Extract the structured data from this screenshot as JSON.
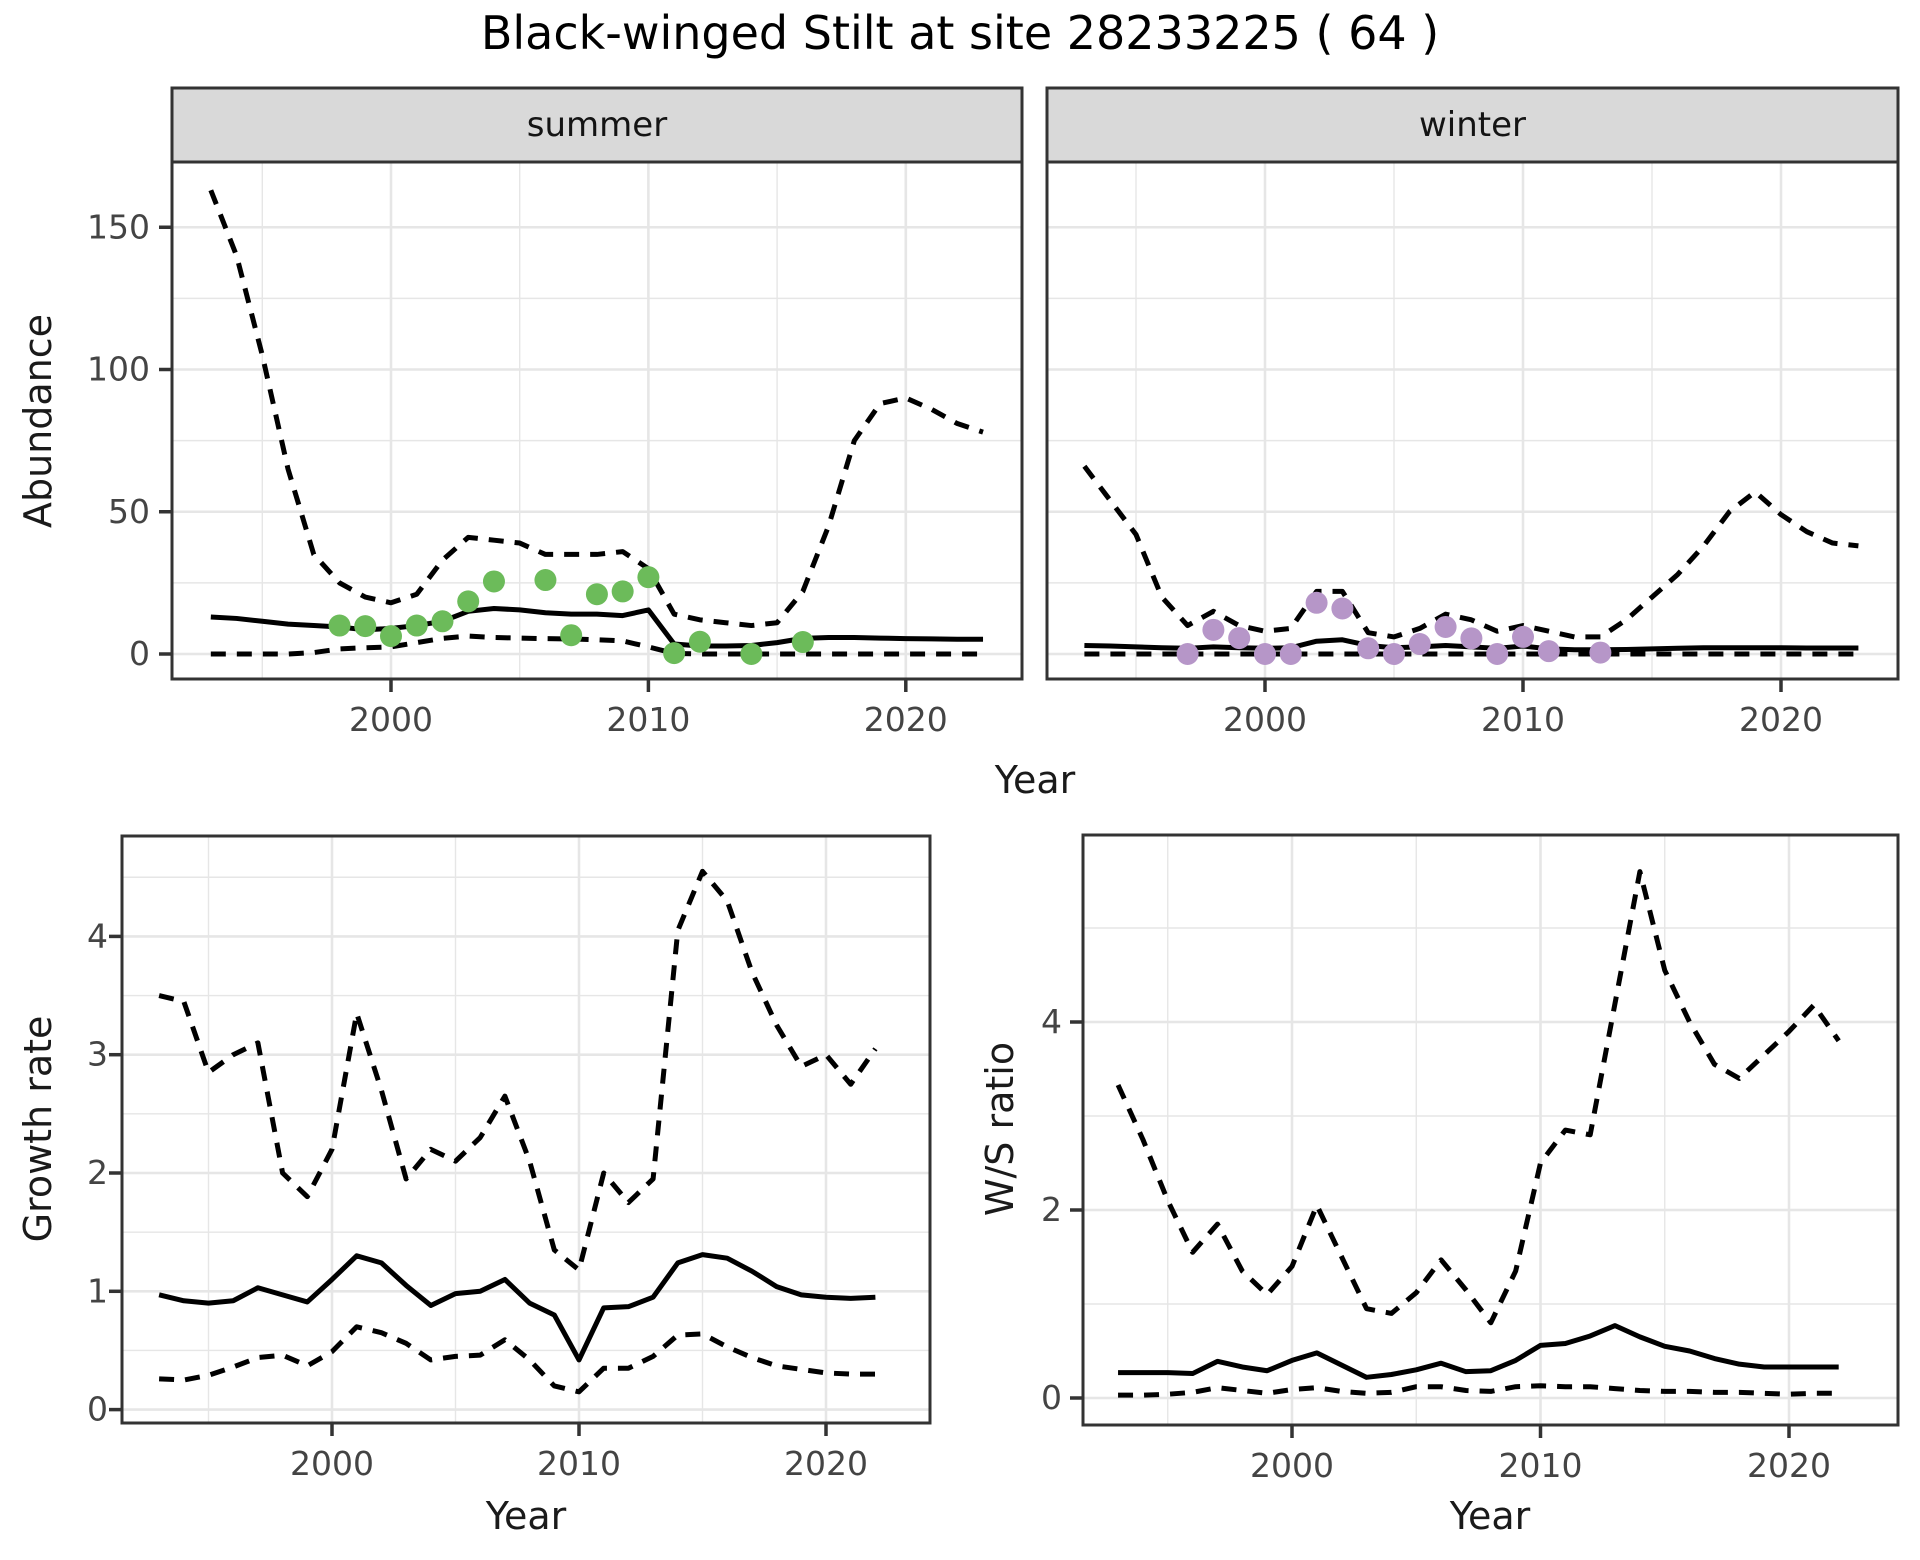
{
  "title": "Black-winged Stilt at site 28233225 ( 64 )",
  "colors": {
    "summer_points": "#6CBB5A",
    "winter_points": "#B696C8",
    "line": "#000000",
    "grid": "#E6E6E6",
    "strip_bg": "#D9D9D9",
    "panel_border": "#333333",
    "tick_text": "#444444",
    "axis_text": "#1A1A1A"
  },
  "chart_data": [
    {
      "type": "line",
      "facet": "summer",
      "xlabel": "Year",
      "ylabel": "Abundance",
      "x": [
        1993,
        1994,
        1995,
        1996,
        1997,
        1998,
        1999,
        2000,
        2001,
        2002,
        2003,
        2004,
        2005,
        2006,
        2007,
        2008,
        2009,
        2010,
        2011,
        2012,
        2013,
        2014,
        2015,
        2016,
        2017,
        2018,
        2019,
        2020,
        2021,
        2022,
        2023
      ],
      "series": [
        {
          "name": "upper_dashed",
          "style": "dashed",
          "values": [
            163,
            140,
            105,
            65,
            35,
            25,
            20,
            18,
            21,
            33,
            41,
            40,
            39,
            35,
            35,
            35,
            36,
            30,
            14,
            12,
            11,
            10,
            11,
            22,
            45,
            75,
            88,
            90,
            86,
            81,
            78
          ]
        },
        {
          "name": "median_solid",
          "style": "solid",
          "values": [
            13,
            12.5,
            11.5,
            10.5,
            10,
            9.5,
            8.5,
            9,
            10,
            11.5,
            15,
            16,
            15.5,
            14.5,
            14,
            14,
            13.5,
            15.5,
            3.5,
            2.8,
            2.8,
            3,
            4,
            5.5,
            5.8,
            5.8,
            5.6,
            5.4,
            5.3,
            5.2,
            5.2
          ]
        },
        {
          "name": "lower_dashed",
          "style": "dashed",
          "values": [
            0,
            0,
            0,
            0,
            0.5,
            1.8,
            2.2,
            2.5,
            4,
            5.5,
            6.3,
            5.8,
            5.6,
            5.4,
            5.3,
            5,
            4.6,
            2.5,
            0.2,
            0,
            0,
            0,
            0,
            0,
            0,
            0,
            0,
            0,
            0,
            0,
            0
          ]
        }
      ],
      "points": {
        "name": "observed-counts-summer",
        "color": "#6CBB5A",
        "xy": [
          [
            1998,
            10
          ],
          [
            1999,
            9.8
          ],
          [
            2000,
            6.3
          ],
          [
            2001,
            10
          ],
          [
            2002,
            11.5
          ],
          [
            2003,
            18.5
          ],
          [
            2004,
            25.5
          ],
          [
            2006,
            26
          ],
          [
            2007,
            6.6
          ],
          [
            2008,
            21
          ],
          [
            2009,
            22
          ],
          [
            2010,
            27
          ],
          [
            2011,
            0.3
          ],
          [
            2012,
            4.3
          ],
          [
            2014,
            0
          ],
          [
            2016,
            4.2
          ]
        ]
      },
      "xticks": [
        2000,
        2010,
        2020
      ],
      "yticks": [
        0,
        50,
        100,
        150
      ],
      "xlim": [
        1991.5,
        2024.5
      ],
      "ylim": [
        -8.8,
        171.6
      ],
      "grid": true,
      "legend": "none"
    },
    {
      "type": "line",
      "facet": "winter",
      "xlabel": "Year",
      "ylabel": "Abundance",
      "x": [
        1993,
        1994,
        1995,
        1996,
        1997,
        1998,
        1999,
        2000,
        2001,
        2002,
        2003,
        2004,
        2005,
        2006,
        2007,
        2008,
        2009,
        2010,
        2011,
        2012,
        2013,
        2014,
        2015,
        2016,
        2017,
        2018,
        2019,
        2020,
        2021,
        2022,
        2023
      ],
      "series": [
        {
          "name": "upper_dashed",
          "style": "dashed",
          "values": [
            66,
            54,
            42,
            20,
            10,
            15,
            10,
            8,
            9,
            22,
            22,
            7.5,
            6,
            9,
            14,
            12,
            8,
            10,
            8,
            6,
            6,
            12,
            20,
            28,
            38,
            50,
            57,
            49,
            43,
            39,
            38
          ]
        },
        {
          "name": "median_solid",
          "style": "solid",
          "values": [
            3,
            2.8,
            2.5,
            2.2,
            2,
            2.5,
            2.2,
            2,
            2.2,
            4.5,
            5,
            3,
            2.2,
            2.5,
            3,
            2.5,
            2,
            2.8,
            1.8,
            1.5,
            1.5,
            1.6,
            1.8,
            2,
            2.2,
            2.2,
            2.2,
            2.2,
            2.1,
            2.1,
            2.1
          ]
        },
        {
          "name": "lower_dashed",
          "style": "dashed",
          "values": [
            0,
            0,
            0,
            0,
            0,
            0,
            0,
            0,
            0,
            0,
            0,
            0,
            0,
            0,
            0,
            0,
            0,
            0,
            0,
            0,
            0,
            0,
            0,
            0,
            0,
            0,
            0,
            0,
            0,
            0,
            0
          ]
        }
      ],
      "points": {
        "name": "observed-counts-winter",
        "color": "#B696C8",
        "xy": [
          [
            1997,
            0
          ],
          [
            1998,
            8.5
          ],
          [
            1999,
            5.6
          ],
          [
            2000,
            0
          ],
          [
            2001,
            0
          ],
          [
            2002,
            18
          ],
          [
            2003,
            16
          ],
          [
            2004,
            2
          ],
          [
            2005,
            0
          ],
          [
            2006,
            3.5
          ],
          [
            2007,
            9.5
          ],
          [
            2008,
            5.5
          ],
          [
            2009,
            0
          ],
          [
            2010,
            6
          ],
          [
            2011,
            1
          ],
          [
            2013,
            0.5
          ]
        ]
      },
      "xticks": [
        2000,
        2010,
        2020
      ],
      "yticks": [
        0,
        50,
        100,
        150
      ],
      "xlim": [
        1991.5,
        2024.5
      ],
      "ylim": [
        -8.8,
        171.6
      ],
      "grid": true,
      "legend": "none"
    },
    {
      "type": "line",
      "facet": "",
      "xlabel": "Year",
      "ylabel": "Growth rate",
      "x": [
        1993,
        1994,
        1995,
        1996,
        1997,
        1998,
        1999,
        2000,
        2001,
        2002,
        2003,
        2004,
        2005,
        2006,
        2007,
        2008,
        2009,
        2010,
        2011,
        2012,
        2013,
        2014,
        2015,
        2016,
        2017,
        2018,
        2019,
        2020,
        2021,
        2022
      ],
      "series": [
        {
          "name": "upper_dashed",
          "style": "dashed",
          "values": [
            3.5,
            3.45,
            2.85,
            3.0,
            3.1,
            2.0,
            1.8,
            2.2,
            3.35,
            2.7,
            1.95,
            2.2,
            2.1,
            2.3,
            2.65,
            2.1,
            1.35,
            1.18,
            2.0,
            1.75,
            1.95,
            4.05,
            4.55,
            4.3,
            3.7,
            3.25,
            2.9,
            3.0,
            2.75,
            3.05
          ]
        },
        {
          "name": "median_solid",
          "style": "solid",
          "values": [
            0.97,
            0.92,
            0.9,
            0.92,
            1.03,
            0.97,
            0.91,
            1.1,
            1.3,
            1.24,
            1.05,
            0.88,
            0.98,
            1.0,
            1.1,
            0.9,
            0.8,
            0.42,
            0.86,
            0.87,
            0.95,
            1.24,
            1.31,
            1.28,
            1.17,
            1.04,
            0.97,
            0.95,
            0.94,
            0.95
          ]
        },
        {
          "name": "lower_dashed",
          "style": "dashed",
          "values": [
            0.26,
            0.25,
            0.29,
            0.36,
            0.44,
            0.46,
            0.37,
            0.49,
            0.7,
            0.65,
            0.56,
            0.42,
            0.45,
            0.46,
            0.59,
            0.42,
            0.2,
            0.15,
            0.35,
            0.35,
            0.45,
            0.63,
            0.64,
            0.53,
            0.44,
            0.37,
            0.34,
            0.31,
            0.3,
            0.3
          ]
        }
      ],
      "points": null,
      "xticks": [
        2000,
        2010,
        2020
      ],
      "yticks": [
        0,
        1,
        2,
        3,
        4
      ],
      "xlim": [
        1991.5,
        2024.2
      ],
      "ylim": [
        -0.11,
        4.85
      ],
      "grid": true,
      "legend": "none"
    },
    {
      "type": "line",
      "facet": "",
      "xlabel": "Year",
      "ylabel": "W/S ratio",
      "x": [
        1993,
        1994,
        1995,
        1996,
        1997,
        1998,
        1999,
        2000,
        2001,
        2002,
        2003,
        2004,
        2005,
        2006,
        2007,
        2008,
        2009,
        2010,
        2011,
        2012,
        2013,
        2014,
        2015,
        2016,
        2017,
        2018,
        2019,
        2020,
        2021,
        2022
      ],
      "series": [
        {
          "name": "upper_dashed",
          "style": "dashed",
          "values": [
            3.33,
            2.75,
            2.1,
            1.55,
            1.85,
            1.35,
            1.1,
            1.4,
            2.05,
            1.5,
            0.95,
            0.9,
            1.12,
            1.47,
            1.15,
            0.8,
            1.35,
            2.5,
            2.85,
            2.8,
            4.2,
            5.6,
            4.55,
            4.0,
            3.55,
            3.4,
            3.65,
            3.9,
            4.18,
            3.8
          ]
        },
        {
          "name": "median_solid",
          "style": "solid",
          "values": [
            0.27,
            0.27,
            0.27,
            0.26,
            0.39,
            0.33,
            0.29,
            0.4,
            0.48,
            0.35,
            0.22,
            0.25,
            0.3,
            0.37,
            0.28,
            0.29,
            0.4,
            0.56,
            0.58,
            0.66,
            0.77,
            0.65,
            0.55,
            0.5,
            0.42,
            0.36,
            0.33,
            0.33,
            0.33,
            0.33
          ]
        },
        {
          "name": "lower_dashed",
          "style": "dashed",
          "values": [
            0.03,
            0.03,
            0.04,
            0.06,
            0.11,
            0.08,
            0.05,
            0.09,
            0.11,
            0.07,
            0.05,
            0.06,
            0.12,
            0.12,
            0.08,
            0.07,
            0.12,
            0.13,
            0.12,
            0.12,
            0.1,
            0.08,
            0.07,
            0.07,
            0.06,
            0.06,
            0.05,
            0.04,
            0.05,
            0.05
          ]
        }
      ],
      "points": null,
      "xticks": [
        2000,
        2010,
        2020
      ],
      "yticks": [
        0,
        2,
        4
      ],
      "xlim": [
        1991.6,
        2024.4
      ],
      "ylim": [
        -0.29,
        5.99
      ],
      "grid": true,
      "legend": "none"
    }
  ]
}
